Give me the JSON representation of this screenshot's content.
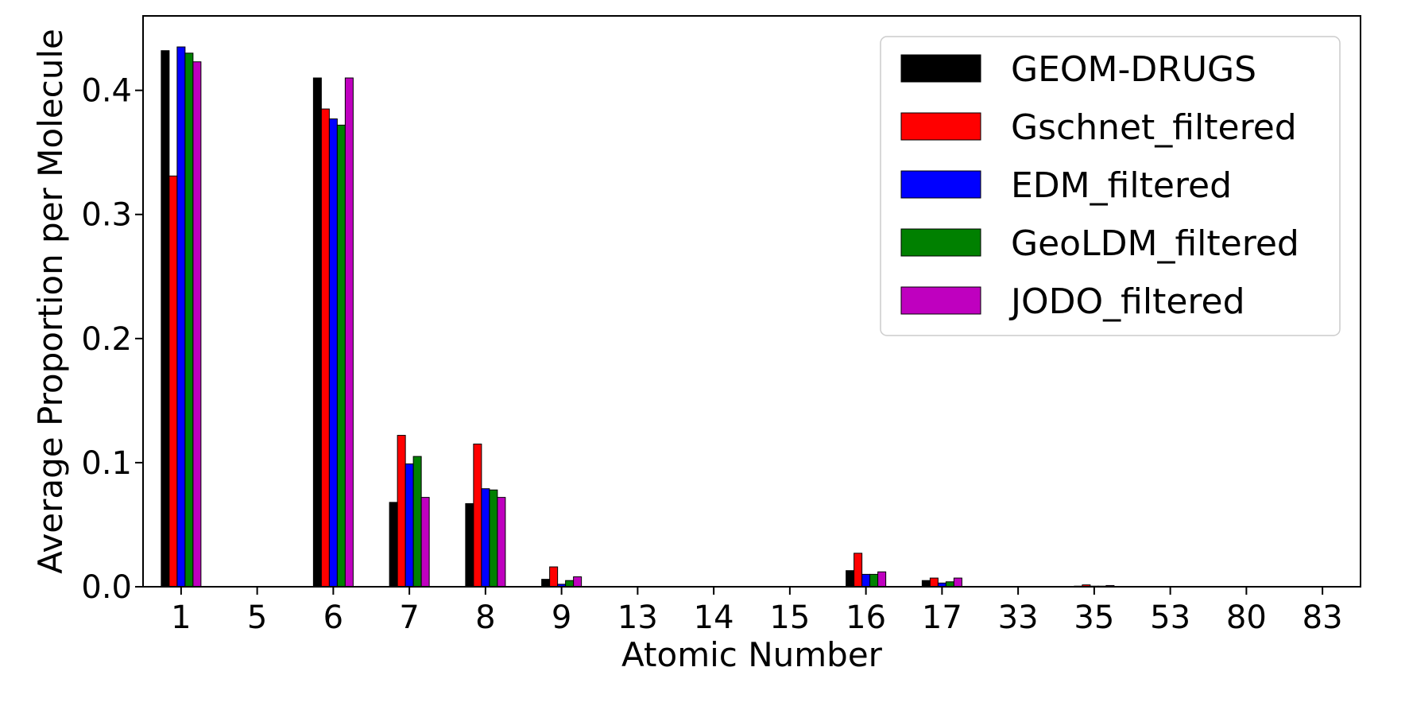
{
  "chart_data": {
    "type": "bar",
    "xlabel": "Atomic Number",
    "ylabel": "Average Proportion per Molecule",
    "ylim": [
      0,
      0.46
    ],
    "yticks": [
      "0.0",
      "0.1",
      "0.2",
      "0.3",
      "0.4"
    ],
    "categories": [
      "1",
      "5",
      "6",
      "7",
      "8",
      "9",
      "13",
      "14",
      "15",
      "16",
      "17",
      "33",
      "35",
      "53",
      "80",
      "83"
    ],
    "legend_position": "top-right",
    "grid": false,
    "series": [
      {
        "name": "GEOM-DRUGS",
        "color": "#000000",
        "values": [
          0.432,
          0,
          0.41,
          0.068,
          0.067,
          0.006,
          0,
          0,
          0,
          0.013,
          0.005,
          0,
          0.0005,
          0,
          0,
          0
        ]
      },
      {
        "name": "Gschnet_filtered",
        "color": "#ff0000",
        "values": [
          0.331,
          0,
          0.385,
          0.122,
          0.115,
          0.016,
          0,
          0,
          0,
          0.027,
          0.007,
          0,
          0.0015,
          0,
          0,
          0
        ]
      },
      {
        "name": "EDM_filtered",
        "color": "#0000ff",
        "values": [
          0.435,
          0,
          0.377,
          0.099,
          0.079,
          0.002,
          0,
          0,
          0,
          0.01,
          0.003,
          0,
          0.0005,
          0,
          0,
          0
        ]
      },
      {
        "name": "GeoLDM_filtered",
        "color": "#008000",
        "values": [
          0.43,
          0,
          0.372,
          0.105,
          0.078,
          0.005,
          0,
          0,
          0,
          0.01,
          0.004,
          0,
          0.0005,
          0,
          0,
          0
        ]
      },
      {
        "name": "JODO_filtered",
        "color": "#bf00bf",
        "values": [
          0.423,
          0,
          0.41,
          0.072,
          0.072,
          0.008,
          0,
          0,
          0,
          0.012,
          0.007,
          0,
          0.001,
          0,
          0,
          0
        ]
      }
    ]
  }
}
